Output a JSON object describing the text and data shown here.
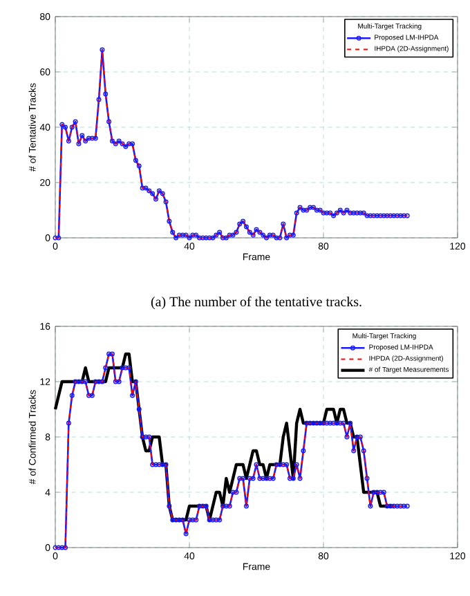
{
  "chart_data": [
    {
      "type": "line",
      "xlabel": "Frame",
      "ylabel": "# of Tentative Tracks",
      "legend_title": "Multi-Target Tracking",
      "xlim": [
        0,
        120
      ],
      "xticks": [
        0,
        40,
        80,
        120
      ],
      "ylim": [
        0,
        80
      ],
      "yticks": [
        0,
        20,
        40,
        60,
        80
      ],
      "grid": true,
      "legend": "top right",
      "annotations": [
        "(a) The number of the tentative tracks."
      ],
      "x": [
        0,
        1,
        2,
        3,
        4,
        5,
        6,
        7,
        8,
        9,
        10,
        11,
        12,
        13,
        14,
        15,
        16,
        17,
        18,
        19,
        20,
        21,
        22,
        23,
        24,
        25,
        26,
        27,
        28,
        29,
        30,
        31,
        32,
        33,
        34,
        35,
        36,
        37,
        38,
        39,
        40,
        41,
        42,
        43,
        44,
        45,
        46,
        47,
        48,
        49,
        50,
        51,
        52,
        53,
        54,
        55,
        56,
        57,
        58,
        59,
        60,
        61,
        62,
        63,
        64,
        65,
        66,
        67,
        68,
        69,
        70,
        71,
        72,
        73,
        74,
        75,
        76,
        77,
        78,
        79,
        80,
        81,
        82,
        83,
        84,
        85,
        86,
        87,
        88,
        89,
        90,
        91,
        92,
        93,
        94,
        95,
        96,
        97,
        98,
        99,
        100,
        101,
        102,
        103,
        104,
        105
      ],
      "series": [
        {
          "name": "Proposed LM-IHPDA",
          "color": "#1a1aff",
          "marker": "circle",
          "line_style": "solid",
          "values": [
            0,
            0,
            41,
            40,
            35,
            40,
            42,
            34,
            37,
            35,
            36,
            36,
            36,
            50,
            68,
            52,
            42,
            35,
            34,
            35,
            34,
            33,
            34,
            34,
            28,
            26,
            18,
            18,
            17,
            16,
            14,
            17,
            16,
            13,
            6,
            2,
            0,
            1,
            1,
            1,
            0,
            1,
            1,
            0,
            0,
            0,
            0,
            0,
            1,
            2,
            0,
            0,
            1,
            1,
            2,
            5,
            6,
            4,
            2,
            1,
            3,
            2,
            1,
            0,
            1,
            1,
            0,
            0,
            5,
            0,
            1,
            1,
            9,
            11,
            10,
            10,
            11,
            11,
            10,
            10,
            9,
            9,
            9,
            8,
            9,
            10,
            9,
            10,
            9,
            9,
            9,
            9,
            9,
            8,
            8,
            8,
            8,
            8,
            8,
            8,
            8,
            8,
            8,
            8,
            8,
            8
          ]
        },
        {
          "name": "IHPDA (2D-Assignment)",
          "color": "#ff0000",
          "marker": "none",
          "line_style": "dashed",
          "values": [
            0,
            0,
            41,
            40,
            35,
            40,
            42,
            34,
            37,
            35,
            36,
            36,
            36,
            50,
            68,
            52,
            42,
            35,
            34,
            35,
            34,
            33,
            34,
            34,
            28,
            26,
            18,
            18,
            17,
            16,
            14,
            17,
            16,
            13,
            6,
            2,
            0,
            1,
            1,
            1,
            0,
            1,
            1,
            0,
            0,
            0,
            0,
            0,
            1,
            2,
            0,
            0,
            1,
            1,
            2,
            5,
            6,
            4,
            2,
            1,
            3,
            2,
            1,
            0,
            1,
            1,
            0,
            0,
            5,
            0,
            1,
            1,
            9,
            11,
            10,
            10,
            11,
            11,
            10,
            10,
            9,
            9,
            9,
            8,
            9,
            10,
            9,
            10,
            9,
            9,
            9,
            9,
            9,
            8,
            8,
            8,
            8,
            8,
            8,
            8,
            8,
            8,
            8,
            8,
            8,
            8
          ]
        }
      ]
    },
    {
      "type": "line",
      "xlabel": "Frame",
      "ylabel": "# of Confirmed Tracks",
      "legend_title": "Multi-Target Tracking",
      "xlim": [
        0,
        120
      ],
      "xticks": [
        0,
        40,
        80,
        120
      ],
      "ylim": [
        0,
        16
      ],
      "yticks": [
        0,
        4,
        8,
        12,
        16
      ],
      "grid": true,
      "legend": "top right",
      "x": [
        0,
        1,
        2,
        3,
        4,
        5,
        6,
        7,
        8,
        9,
        10,
        11,
        12,
        13,
        14,
        15,
        16,
        17,
        18,
        19,
        20,
        21,
        22,
        23,
        24,
        25,
        26,
        27,
        28,
        29,
        30,
        31,
        32,
        33,
        34,
        35,
        36,
        37,
        38,
        39,
        40,
        41,
        42,
        43,
        44,
        45,
        46,
        47,
        48,
        49,
        50,
        51,
        52,
        53,
        54,
        55,
        56,
        57,
        58,
        59,
        60,
        61,
        62,
        63,
        64,
        65,
        66,
        67,
        68,
        69,
        70,
        71,
        72,
        73,
        74,
        75,
        76,
        77,
        78,
        79,
        80,
        81,
        82,
        83,
        84,
        85,
        86,
        87,
        88,
        89,
        90,
        91,
        92,
        93,
        94,
        95,
        96,
        97,
        98,
        99,
        100,
        101,
        102,
        103,
        104,
        105
      ],
      "series": [
        {
          "name": "Proposed LM-IHPDA",
          "color": "#1a1aff",
          "marker": "circle",
          "line_style": "solid",
          "values": [
            0,
            0,
            0,
            0,
            9,
            11,
            12,
            12,
            12,
            12,
            11,
            11,
            12,
            12,
            12,
            13,
            14,
            14,
            12,
            12,
            13,
            13,
            13,
            11,
            12,
            10,
            8,
            8,
            8,
            6,
            6,
            6,
            6,
            6,
            3,
            2,
            2,
            2,
            2,
            1,
            2,
            2,
            2,
            3,
            3,
            3,
            2,
            2,
            2,
            2,
            3,
            3,
            3,
            4,
            4,
            5,
            5,
            3,
            5,
            5,
            6,
            5,
            5,
            5,
            5,
            5,
            6,
            6,
            6,
            6,
            5,
            5,
            6,
            5,
            7,
            9,
            9,
            9,
            9,
            9,
            9,
            9,
            9,
            9,
            9,
            9,
            9,
            8,
            9,
            7,
            8,
            8,
            7,
            5,
            3,
            4,
            4,
            4,
            4,
            3,
            3,
            3,
            3,
            3,
            3,
            3
          ]
        },
        {
          "name": "IHPDA (2D-Assignment)",
          "color": "#ff0000",
          "marker": "none",
          "line_style": "dashed",
          "values": [
            0,
            0,
            0,
            0,
            9,
            11,
            12,
            12,
            12,
            12,
            11,
            11,
            12,
            12,
            12,
            13,
            14,
            14,
            12,
            12,
            13,
            13,
            13,
            11,
            12,
            10,
            8,
            8,
            8,
            6,
            6,
            6,
            6,
            6,
            3,
            2,
            2,
            2,
            2,
            1,
            2,
            2,
            2,
            3,
            3,
            3,
            2,
            2,
            2,
            2,
            3,
            3,
            3,
            4,
            4,
            5,
            5,
            3,
            5,
            5,
            6,
            5,
            5,
            5,
            5,
            5,
            6,
            6,
            6,
            6,
            5,
            5,
            6,
            5,
            7,
            9,
            9,
            9,
            9,
            9,
            9,
            9,
            9,
            9,
            9,
            9,
            9,
            8,
            9,
            7,
            8,
            8,
            7,
            5,
            3,
            4,
            4,
            4,
            4,
            3,
            3,
            3,
            3,
            3,
            3,
            3
          ]
        },
        {
          "name": "# of Target Measurements",
          "color": "#000000",
          "marker": "none",
          "line_style": "solid",
          "values": [
            10,
            11,
            12,
            12,
            12,
            12,
            12,
            12,
            12,
            13,
            12,
            12,
            12,
            12,
            12,
            12,
            13,
            13,
            13,
            13,
            13,
            14,
            14,
            12,
            12,
            10,
            8,
            7,
            7,
            8,
            8,
            8,
            6,
            6,
            3,
            2,
            2,
            2,
            2,
            2,
            3,
            3,
            3,
            3,
            3,
            3,
            2,
            3,
            4,
            4,
            3,
            5,
            4,
            5,
            6,
            6,
            6,
            5,
            6,
            7,
            7,
            6,
            6,
            5,
            6,
            6,
            6,
            6,
            8,
            9,
            7,
            5,
            9,
            10,
            9,
            9,
            9,
            9,
            9,
            9,
            9,
            10,
            10,
            10,
            9,
            10,
            10,
            9,
            9,
            8,
            8,
            6,
            4,
            4,
            4,
            4,
            4,
            3,
            3,
            3,
            3,
            3,
            null,
            null,
            null,
            null
          ]
        }
      ]
    }
  ]
}
